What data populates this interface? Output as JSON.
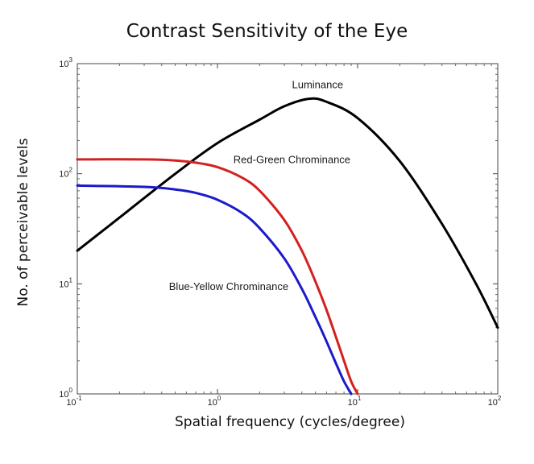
{
  "chart_data": {
    "type": "line",
    "title": "Contrast Sensitivity of the Eye",
    "xlabel": "Spatial frequency (cycles/degree)",
    "ylabel": "No. of perceivable levels",
    "xscale": "log",
    "yscale": "log",
    "xlim": [
      0.1,
      100
    ],
    "ylim": [
      1,
      1000
    ],
    "grid": false,
    "x_ticks": [
      {
        "base": "10",
        "exp": "-1",
        "value": 0.1
      },
      {
        "base": "10",
        "exp": "0",
        "value": 1
      },
      {
        "base": "10",
        "exp": "1",
        "value": 10
      },
      {
        "base": "10",
        "exp": "2",
        "value": 100
      }
    ],
    "y_ticks": [
      {
        "base": "10",
        "exp": "0",
        "value": 1
      },
      {
        "base": "10",
        "exp": "1",
        "value": 10
      },
      {
        "base": "10",
        "exp": "2",
        "value": 100
      },
      {
        "base": "10",
        "exp": "3",
        "value": 1000
      }
    ],
    "series": [
      {
        "name": "Luminance",
        "color": "#000000",
        "x": [
          0.1,
          0.2,
          0.5,
          1,
          2,
          3,
          4.5,
          6,
          10,
          20,
          40,
          70,
          100
        ],
        "y": [
          20,
          40,
          100,
          190,
          310,
          410,
          480,
          450,
          320,
          130,
          35,
          10,
          4
        ]
      },
      {
        "name": "Red-Green Chrominance",
        "color": "#d42020",
        "x": [
          0.1,
          0.3,
          0.5,
          0.7,
          1,
          1.5,
          2,
          3,
          4,
          5,
          6,
          7,
          8,
          9,
          10
        ],
        "y": [
          135,
          135,
          132,
          126,
          115,
          92,
          70,
          38,
          20,
          10.5,
          5.8,
          3.3,
          2,
          1.3,
          1
        ]
      },
      {
        "name": "Blue-Yellow Chrominance",
        "color": "#1a1acc",
        "x": [
          0.1,
          0.3,
          0.5,
          0.7,
          1,
          1.5,
          2,
          3,
          4,
          5,
          6,
          7,
          8,
          9
        ],
        "y": [
          78,
          76,
          72,
          67,
          58,
          44,
          32,
          17,
          9,
          5,
          3,
          1.9,
          1.3,
          1
        ]
      }
    ]
  }
}
